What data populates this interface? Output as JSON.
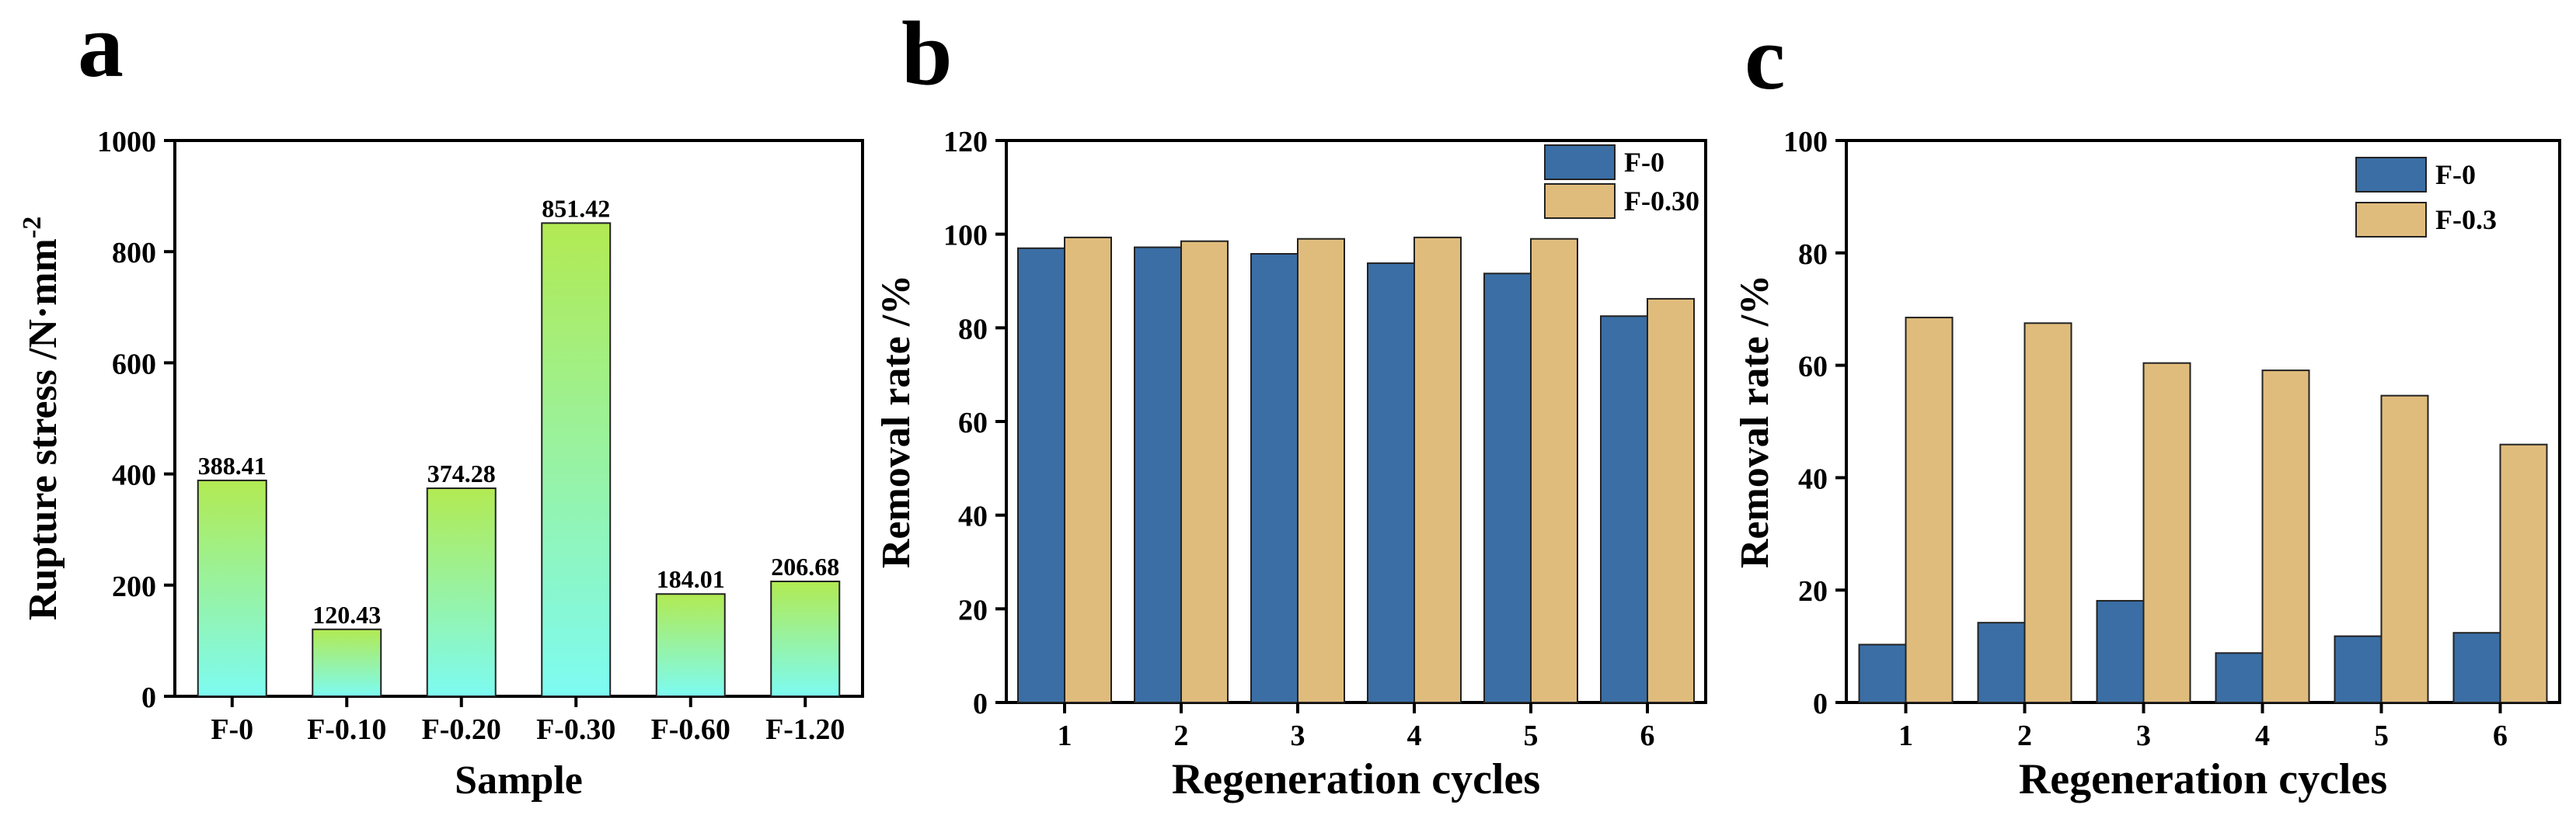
{
  "panels": [
    {
      "letter": "a"
    },
    {
      "letter": "b"
    },
    {
      "letter": "c"
    }
  ],
  "colors": {
    "bar_gradient_top": "#b2ea52",
    "bar_gradient_bottom": "#7dfbf2",
    "f0_blue": "#3a6ea5",
    "f030_tan": "#e0bc7c",
    "axis": "#000000"
  },
  "chart_data": [
    {
      "type": "bar",
      "title": "",
      "xlabel": "Sample",
      "ylabel": "Rupture stress /N·mm⁻²",
      "categories": [
        "F-0",
        "F-0.10",
        "F-0.20",
        "F-0.30",
        "F-0.60",
        "F-1.20"
      ],
      "values": [
        388.41,
        120.43,
        374.28,
        851.42,
        184.01,
        206.68
      ],
      "data_labels": [
        "388.41",
        "120.43",
        "374.28",
        "851.42",
        "184.01",
        "206.68"
      ],
      "ylim": [
        0,
        1000
      ],
      "yticks": [
        0,
        200,
        400,
        600,
        800,
        1000
      ],
      "grid": false
    },
    {
      "type": "bar",
      "title": "",
      "xlabel": "Regeneration cycles",
      "ylabel": "Removal rate /%",
      "categories": [
        "1",
        "2",
        "3",
        "4",
        "5",
        "6"
      ],
      "series": [
        {
          "name": "F-0",
          "values": [
            97,
            97.2,
            95.8,
            93.8,
            91.6,
            82.5
          ]
        },
        {
          "name": "F-0.30",
          "values": [
            99.3,
            98.5,
            99,
            99.3,
            99,
            86.2
          ]
        }
      ],
      "ylim": [
        0,
        120
      ],
      "yticks": [
        0,
        20,
        40,
        60,
        80,
        100,
        120
      ],
      "legend": "top-right",
      "grid": false
    },
    {
      "type": "bar",
      "title": "",
      "xlabel": "Regeneration cycles",
      "ylabel": "Removal rate /%",
      "categories": [
        "1",
        "2",
        "3",
        "4",
        "5",
        "6"
      ],
      "series": [
        {
          "name": "F-0",
          "values": [
            10.3,
            14.2,
            18.1,
            8.8,
            11.8,
            12.4
          ]
        },
        {
          "name": "F-0.3",
          "values": [
            68.5,
            67.5,
            60.4,
            59.1,
            54.6,
            45.9
          ]
        }
      ],
      "ylim": [
        0,
        100
      ],
      "yticks": [
        0,
        20,
        40,
        60,
        80,
        100
      ],
      "legend": "top-right",
      "grid": false
    }
  ]
}
